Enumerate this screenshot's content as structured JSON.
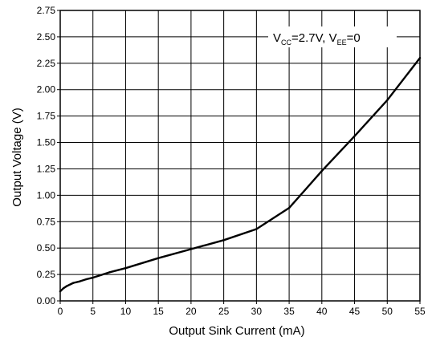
{
  "chart_data": {
    "type": "line",
    "xlabel": "Output Sink Current (mA)",
    "ylabel": "Output Voltage (V)",
    "xlim": [
      0,
      55
    ],
    "ylim": [
      0,
      2.75
    ],
    "x_ticks": [
      "0",
      "5",
      "10",
      "15",
      "20",
      "25",
      "30",
      "35",
      "40",
      "45",
      "50",
      "55"
    ],
    "y_ticks": [
      "0.00",
      "0.25",
      "0.50",
      "0.75",
      "1.00",
      "1.25",
      "1.50",
      "1.75",
      "2.00",
      "2.25",
      "2.50",
      "2.75"
    ],
    "grid": true,
    "annotation": {
      "v1": "V",
      "sub1": "CC",
      "mid": "=2.7V, V",
      "sub2": "EE",
      "tail": "=0"
    },
    "series": [
      {
        "x": [
          0,
          0.5,
          1,
          2,
          3,
          4,
          5,
          7.5,
          10,
          15,
          20,
          25,
          30,
          35,
          40,
          45,
          50,
          55
        ],
        "y": [
          0.09,
          0.12,
          0.14,
          0.17,
          0.185,
          0.205,
          0.22,
          0.27,
          0.31,
          0.405,
          0.49,
          0.575,
          0.68,
          0.88,
          1.23,
          1.56,
          1.9,
          2.3
        ]
      }
    ],
    "line_color": "#000000"
  }
}
